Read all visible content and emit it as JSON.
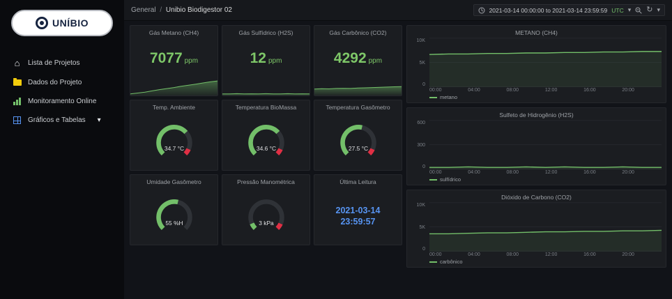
{
  "app": {
    "accent_green": "#73bf69",
    "accent_blue": "#5794f2",
    "threshold_red": "#e02f44"
  },
  "sidebar": {
    "logo_text": "UNÍBIO",
    "items": [
      {
        "label": "Lista de Projetos",
        "icon": "home-icon"
      },
      {
        "label": "Dados do Projeto",
        "icon": "folder-icon"
      },
      {
        "label": "Monitoramento Online",
        "icon": "bar-chart-icon"
      },
      {
        "label": "Gráficos e Tabelas",
        "icon": "table-icon"
      }
    ]
  },
  "header": {
    "breadcrumb_root": "General",
    "breadcrumb_sep": "/",
    "breadcrumb_page": "Unibio Biodigestor 02",
    "time_range": "2021-03-14 00:00:00 to 2021-03-14 23:59:59",
    "timezone": "UTC"
  },
  "panels": {
    "stats": [
      {
        "title": "Gás Metano (CH4)",
        "value": "7077",
        "unit": "ppm",
        "spark": [
          0.1,
          0.16,
          0.22,
          0.3,
          0.38,
          0.45,
          0.52,
          0.6,
          0.67,
          0.74,
          0.82,
          0.89,
          0.95
        ]
      },
      {
        "title": "Gás Sulfídrico (H2S)",
        "value": "12",
        "unit": "ppm",
        "spark": [
          0.1,
          0.1,
          0.12,
          0.1,
          0.11,
          0.1,
          0.12,
          0.1,
          0.1,
          0.12,
          0.1,
          0.11,
          0.1
        ]
      },
      {
        "title": "Gás Carbônico (CO2)",
        "value": "4292",
        "unit": "ppm",
        "spark": [
          0.42,
          0.44,
          0.43,
          0.46,
          0.47,
          0.46,
          0.49,
          0.5,
          0.52,
          0.53,
          0.55,
          0.57,
          0.58
        ]
      }
    ],
    "gauges": [
      {
        "title": "Temp. Ambiente",
        "value": "34.7 °C",
        "percent": 0.68,
        "threshold": true
      },
      {
        "title": "Temperatura BioMassa",
        "value": "34.6 °C",
        "percent": 0.68,
        "threshold": true
      },
      {
        "title": "Temperatura Gasômetro",
        "value": "27.5 °C",
        "percent": 0.55,
        "threshold": true
      },
      {
        "title": "Umidade Gasômetro",
        "value": "55 %H",
        "percent": 0.55,
        "threshold": false
      },
      {
        "title": "Pressão Manométrica",
        "value": "3 kPa",
        "percent": 0.08,
        "threshold": true
      }
    ],
    "last_reading": {
      "title": "Última Leitura",
      "date": "2021-03-14",
      "time": "23:59:57"
    }
  },
  "chart_data": [
    {
      "type": "line",
      "title": "METANO (CH4)",
      "legend": "metano",
      "x_ticks": [
        "00:00",
        "04:00",
        "08:00",
        "12:00",
        "16:00",
        "20:00"
      ],
      "y_ticks": [
        "10K",
        "5K",
        "0"
      ],
      "ylim": [
        0,
        10000
      ],
      "points": [
        0.66,
        0.67,
        0.67,
        0.68,
        0.68,
        0.69,
        0.69,
        0.7,
        0.7,
        0.71,
        0.71,
        0.72,
        0.72
      ]
    },
    {
      "type": "line",
      "title": "Sulfeto de Hidrogênio (H2S)",
      "legend": "sulfídrico",
      "x_ticks": [
        "00:00",
        "04:00",
        "08:00",
        "12:00",
        "16:00",
        "20:00"
      ],
      "y_ticks": [
        "600",
        "300",
        "0"
      ],
      "ylim": [
        0,
        600
      ],
      "points": [
        0.04,
        0.04,
        0.05,
        0.04,
        0.04,
        0.05,
        0.04,
        0.05,
        0.04,
        0.04,
        0.05,
        0.04,
        0.04
      ]
    },
    {
      "type": "line",
      "title": "Dióxido de Carbono (CO2)",
      "legend": "carbônico",
      "x_ticks": [
        "00:00",
        "04:00",
        "08:00",
        "12:00",
        "16:00",
        "20:00"
      ],
      "y_ticks": [
        "10K",
        "5K",
        "0"
      ],
      "ylim": [
        0,
        10000
      ],
      "points": [
        0.36,
        0.36,
        0.37,
        0.38,
        0.38,
        0.39,
        0.4,
        0.4,
        0.41,
        0.41,
        0.42,
        0.42,
        0.43
      ]
    }
  ]
}
